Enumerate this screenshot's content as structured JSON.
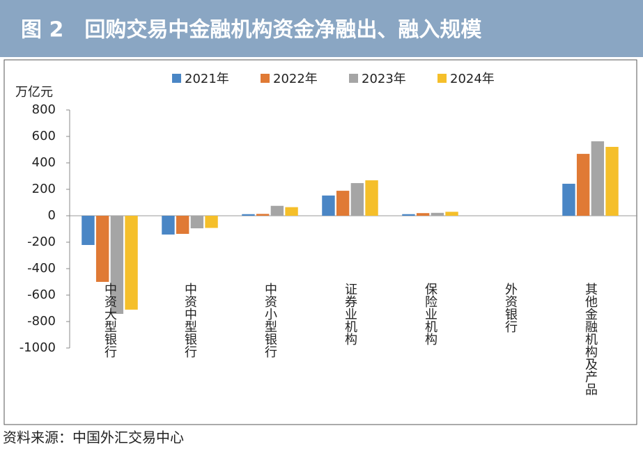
{
  "chart_data": {
    "type": "bar",
    "title": "图 2　回购交易中金融机构资金净融出、融入规模",
    "y_label": "万亿元",
    "source": "资料来源：中国外汇交易中心",
    "categories": [
      "中资大型银行",
      "中资中型银行",
      "中资小型银行",
      "证券业机构",
      "保险业机构",
      "外资银行",
      "其他金融机构及产品"
    ],
    "series": [
      {
        "name": "2021年",
        "color": "#4a86c5",
        "values": [
          -221,
          -142,
          12,
          153,
          12,
          0,
          242
        ]
      },
      {
        "name": "2022年",
        "color": "#e07a35",
        "values": [
          -500,
          -137,
          14,
          189,
          20,
          0,
          468
        ]
      },
      {
        "name": "2023年",
        "color": "#a5a5a5",
        "values": [
          -742,
          -95,
          75,
          247,
          22,
          0,
          563
        ]
      },
      {
        "name": "2024年",
        "color": "#f5bf2a",
        "values": [
          -710,
          -92,
          65,
          268,
          30,
          0,
          521
        ]
      }
    ],
    "ylim": [
      -1000,
      800
    ],
    "yticks": [
      800,
      600,
      400,
      200,
      0,
      -200,
      -400,
      -600,
      -800,
      -1000
    ],
    "legend": "top"
  }
}
